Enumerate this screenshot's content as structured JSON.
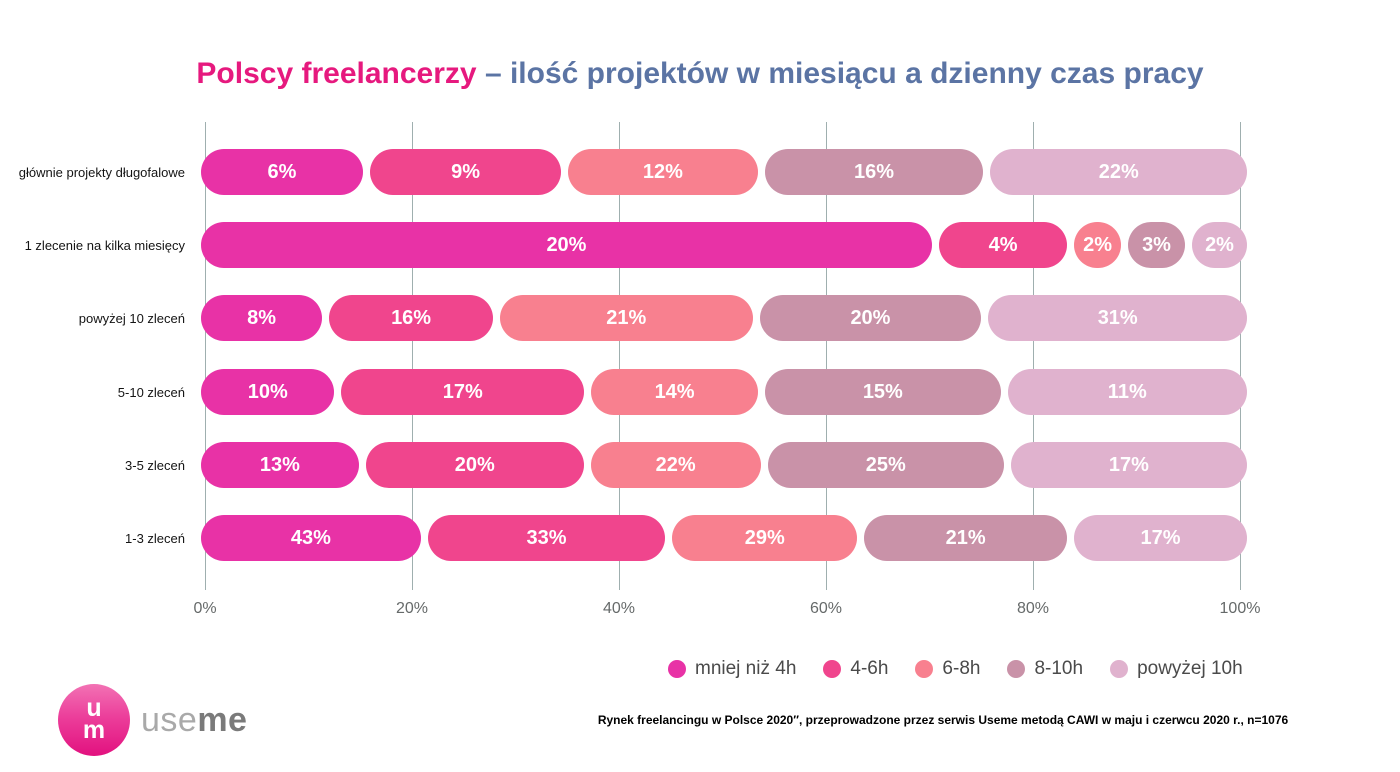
{
  "title_parts": {
    "highlight": "Polscy freelancerzy",
    "rest": "– ilość projektów w miesiącu a dzienny czas pracy",
    "highlight_color": "#e6197e",
    "rest_color": "#5b74a4"
  },
  "chart_data": {
    "type": "bar",
    "variant": "horizontal-stacked",
    "title": "Polscy freelancerzy – ilość projektów w miesiącu a dzienny czas pracy",
    "categories": [
      "głównie projekty długofalowe",
      "1 zlecenie na kilka miesięcy",
      "powyżej 10 zleceń",
      "5-10 zleceń",
      "3-5 zleceń",
      "1-3 zleceń"
    ],
    "series_labels": [
      "mniej niż 4h",
      "4-6h",
      "6-8h",
      "8-10h",
      "powyżej 10h"
    ],
    "series_colors": [
      "#e832a6",
      "#f0458d",
      "#f8808f",
      "#c992a8",
      "#e0b2ce"
    ],
    "rows": [
      {
        "category": "głównie projekty długofalowe",
        "values_pct": [
          6,
          9,
          12,
          16,
          22
        ],
        "labels": [
          "6%",
          "9%",
          "12%",
          "16%",
          "22%"
        ],
        "segment_width_pct": [
          15.9,
          18.8,
          18.6,
          21.5,
          25.2
        ]
      },
      {
        "category": "1 zlecenie na kilka miesięcy",
        "values_pct": [
          20,
          4,
          2,
          3,
          2
        ],
        "labels": [
          "20%",
          "4%",
          "2%",
          "3%",
          "2%"
        ],
        "segment_width_pct": [
          71.8,
          12.6,
          4.6,
          5.6,
          5.4
        ]
      },
      {
        "category": "powyżej 10 zleceń",
        "values_pct": [
          8,
          16,
          21,
          20,
          31
        ],
        "labels": [
          "8%",
          "16%",
          "21%",
          "20%",
          "31%"
        ],
        "segment_width_pct": [
          11.9,
          16.1,
          24.8,
          21.8,
          25.4
        ]
      },
      {
        "category": "5-10 zleceń",
        "values_pct": [
          10,
          17,
          14,
          15,
          11
        ],
        "labels": [
          "10%",
          "17%",
          "14%",
          "15%",
          "11%"
        ],
        "segment_width_pct": [
          13.1,
          23.8,
          16.4,
          23.1,
          23.5
        ]
      },
      {
        "category": "3-5 zleceń",
        "values_pct": [
          13,
          20,
          22,
          25,
          17
        ],
        "labels": [
          "13%",
          "20%",
          "22%",
          "25%",
          "17%"
        ],
        "segment_width_pct": [
          15.5,
          21.4,
          16.7,
          23.2,
          23.2
        ]
      },
      {
        "category": "1-3 zleceń",
        "values_pct": [
          43,
          33,
          29,
          21,
          17
        ],
        "labels": [
          "43%",
          "33%",
          "29%",
          "21%",
          "17%"
        ],
        "segment_width_pct": [
          21.6,
          23.3,
          18.2,
          19.9,
          17.0
        ]
      }
    ],
    "x_ticks": [
      "0%",
      "20%",
      "40%",
      "60%",
      "80%",
      "100%"
    ],
    "xlim": [
      0,
      100
    ],
    "grid": "vertical-lines",
    "gridline_color": "#9fafaf",
    "legend_position": "bottom-right",
    "value_label_color": "#ffffff"
  },
  "legend": {
    "items": [
      {
        "label": "mniej niż 4h",
        "color": "#e832a6"
      },
      {
        "label": "4-6h",
        "color": "#f0458d"
      },
      {
        "label": "6-8h",
        "color": "#f8808f"
      },
      {
        "label": "8-10h",
        "color": "#c992a8"
      },
      {
        "label": "powyżej 10h",
        "color": "#e0b2ce"
      }
    ]
  },
  "logo": {
    "monogram_top": "u",
    "monogram_bottom": "m",
    "word_light": "use",
    "word_bold": "me"
  },
  "footer": {
    "source": "Rynek freelancingu w Polsce 2020″, przeprowadzone przez serwis Useme metodą CAWI w maju i czerwcu 2020 r., n=1076"
  }
}
